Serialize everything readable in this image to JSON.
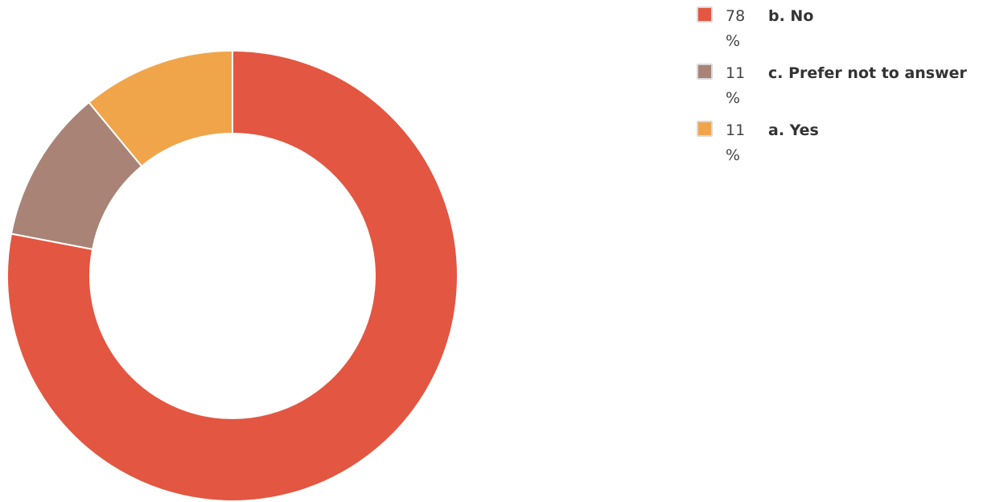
{
  "chart_data": {
    "type": "pie",
    "variant": "donut",
    "slices": [
      {
        "label": "b. No",
        "value": 78,
        "pct_label": "78",
        "color": "#e35641"
      },
      {
        "label": "c. Prefer not to answer",
        "value": 11,
        "pct_label": "11",
        "color": "#a98376"
      },
      {
        "label": "a. Yes",
        "value": 11,
        "pct_label": "11",
        "color": "#f0a54b"
      }
    ],
    "percent_sign": "%",
    "legend_position": "top-right",
    "start_angle_deg": 0,
    "direction": "clockwise"
  }
}
